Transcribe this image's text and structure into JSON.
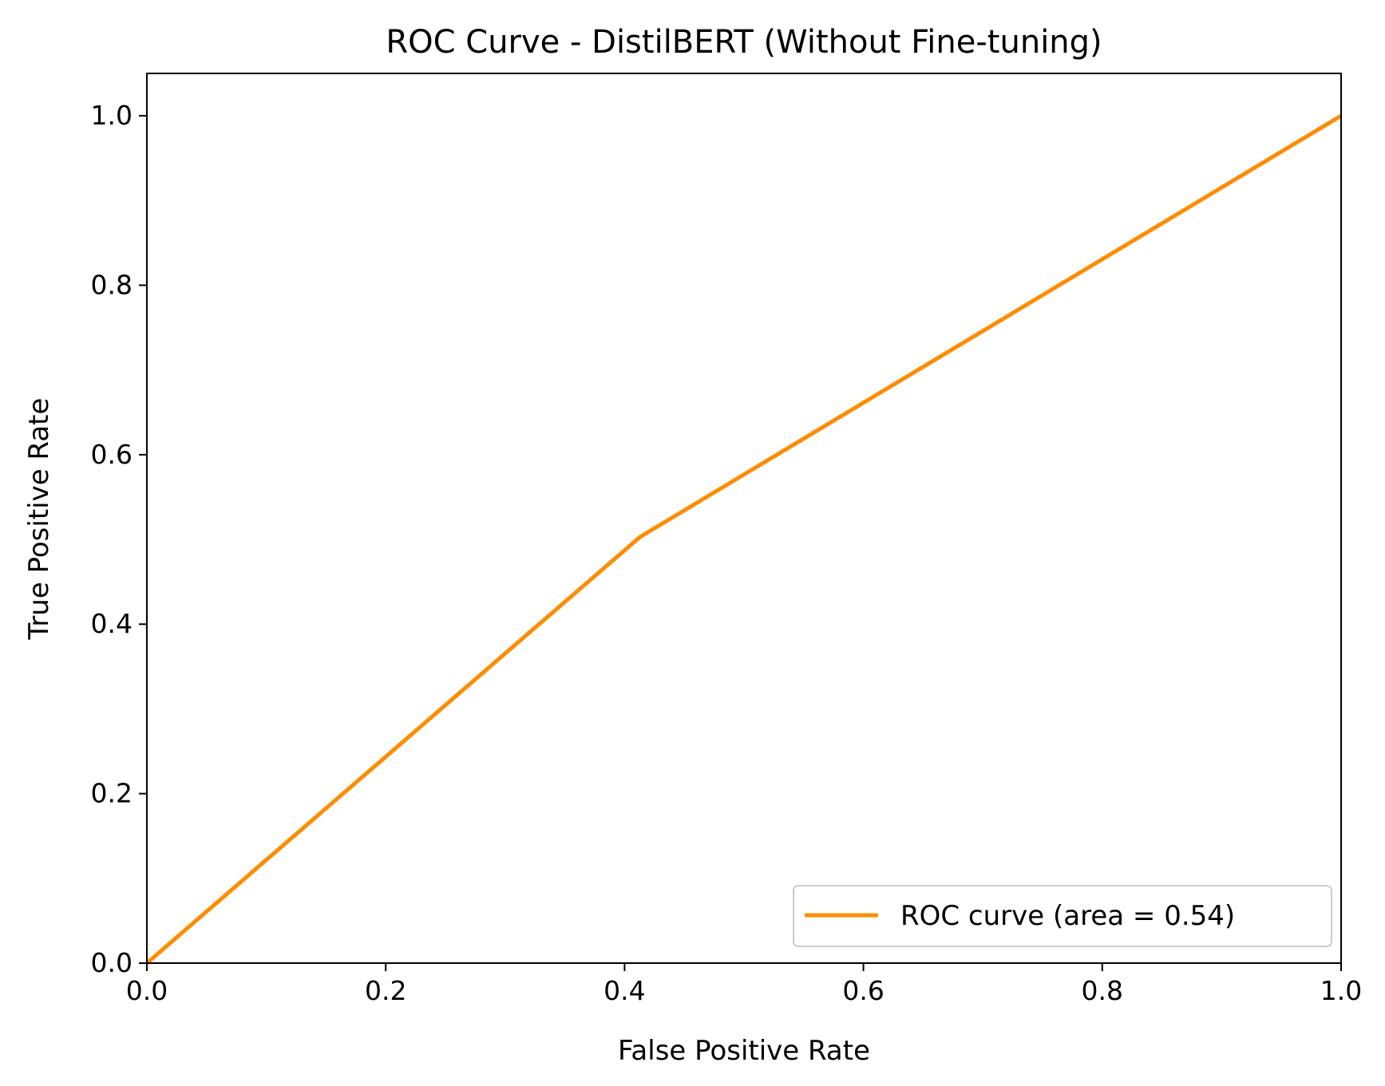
{
  "chart_data": {
    "type": "line",
    "title": "ROC Curve - DistilBERT (Without Fine-tuning)",
    "xlabel": "False Positive Rate",
    "ylabel": "True Positive Rate",
    "xlim": [
      0.0,
      1.0
    ],
    "ylim": [
      0.0,
      1.05
    ],
    "xticks": [
      "0.0",
      "0.2",
      "0.4",
      "0.6",
      "0.8",
      "1.0"
    ],
    "yticks": [
      "0.0",
      "0.2",
      "0.4",
      "0.6",
      "0.8",
      "1.0"
    ],
    "grid": false,
    "legend_position": "lower-right",
    "series": [
      {
        "name": "ROC curve (area = 0.54)",
        "color": "#ff8c00",
        "x": [
          0.0,
          0.413,
          1.0
        ],
        "y": [
          0.0,
          0.503,
          1.0
        ]
      }
    ]
  }
}
